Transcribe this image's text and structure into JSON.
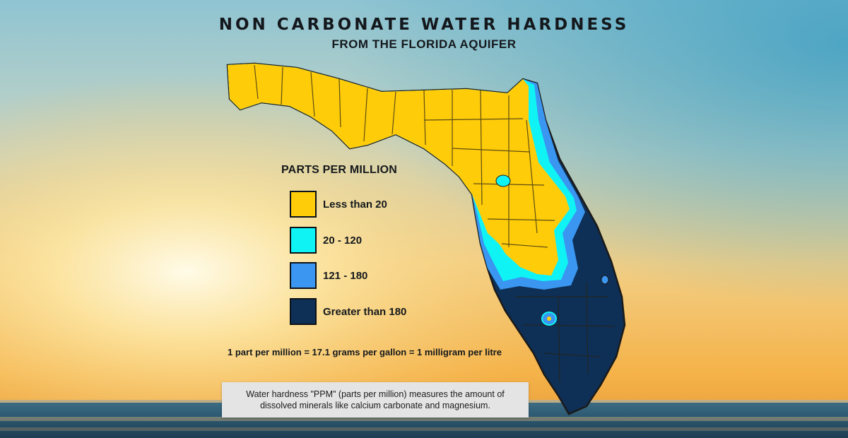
{
  "title": "NON CARBONATE WATER HARDNESS",
  "subtitle": "FROM THE FLORIDA AQUIFER",
  "legend": {
    "title": "PARTS PER MILLION",
    "items": [
      {
        "label": "Less than 20",
        "color": "#ffcc0a"
      },
      {
        "label": "20 - 120",
        "color": "#10f3f4"
      },
      {
        "label": "121 - 180",
        "color": "#3a96f0"
      },
      {
        "label": "Greater than 180",
        "color": "#0e2f56"
      }
    ]
  },
  "conversion_note": "1 part per million = 17.1 grams per gallon = 1 milligram per litre",
  "description": "Water hardness \"PPM\" (parts per million) measures the amount of dissolved minerals like calcium carbonate and magnesium.",
  "map": {
    "region": "Florida",
    "border_color": "#1a1a1a"
  }
}
